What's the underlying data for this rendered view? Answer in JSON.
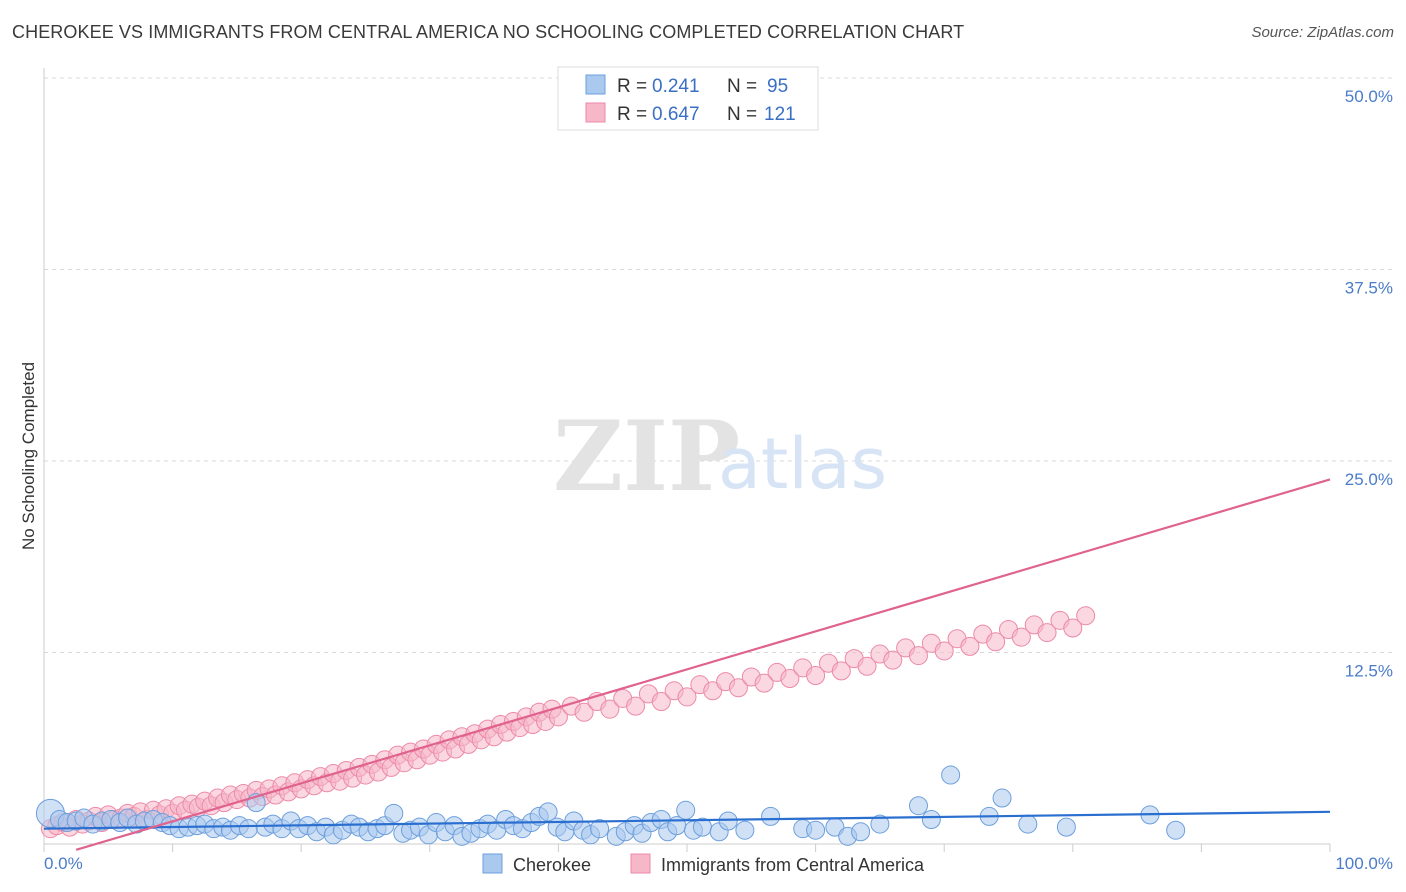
{
  "title": "CHEROKEE VS IMMIGRANTS FROM CENTRAL AMERICA NO SCHOOLING COMPLETED CORRELATION CHART",
  "source": "Source: ZipAtlas.com",
  "watermark": {
    "zip": "ZIP",
    "atlas": "atlas"
  },
  "colors": {
    "blue_fill": "#a9c9ef",
    "blue_stroke": "#6d9fdc",
    "blue_line": "#2a6fd0",
    "pink_fill": "#f6b7c9",
    "pink_stroke": "#ec8aa8",
    "pink_line": "#e0628e",
    "tick_label": "#4a7cc9",
    "grid": "#d9d9d9"
  },
  "legend": [
    {
      "r_label": "R =",
      "r_value": "0.241",
      "n_label": "N =",
      "n_value": "95"
    },
    {
      "r_label": "R =",
      "r_value": "0.647",
      "n_label": "N =",
      "n_value": "121"
    }
  ],
  "chart_data": {
    "type": "scatter",
    "title": "CHEROKEE VS IMMIGRANTS FROM CENTRAL AMERICA NO SCHOOLING COMPLETED CORRELATION CHART",
    "xlabel": "",
    "ylabel": "No Schooling Completed",
    "xlim": [
      0,
      100
    ],
    "ylim": [
      0,
      50
    ],
    "x_ticks": [
      "0.0%",
      "100.0%"
    ],
    "y_ticks": [
      {
        "value": 12.5,
        "label": "12.5%"
      },
      {
        "value": 25.0,
        "label": "25.0%"
      },
      {
        "value": 37.5,
        "label": "37.5%"
      },
      {
        "value": 50.0,
        "label": "50.0%"
      }
    ],
    "grid": true,
    "legend_position": "top-center",
    "series": [
      {
        "name": "Cherokee",
        "color": "#a9c9ef",
        "trend": {
          "x": [
            0,
            100
          ],
          "y": [
            1.0,
            2.1
          ]
        },
        "points": [
          [
            0.5,
            2.0
          ],
          [
            1.2,
            1.6
          ],
          [
            1.8,
            1.4
          ],
          [
            2.5,
            1.5
          ],
          [
            3.1,
            1.7
          ],
          [
            3.8,
            1.3
          ],
          [
            4.5,
            1.5
          ],
          [
            5.2,
            1.6
          ],
          [
            5.9,
            1.4
          ],
          [
            6.5,
            1.7
          ],
          [
            7.2,
            1.3
          ],
          [
            7.8,
            1.5
          ],
          [
            8.5,
            1.6
          ],
          [
            9.2,
            1.4
          ],
          [
            9.8,
            1.2
          ],
          [
            10.5,
            1.0
          ],
          [
            11.2,
            1.1
          ],
          [
            11.9,
            1.2
          ],
          [
            12.5,
            1.3
          ],
          [
            13.2,
            1.0
          ],
          [
            13.9,
            1.1
          ],
          [
            14.5,
            0.9
          ],
          [
            15.2,
            1.2
          ],
          [
            15.9,
            1.0
          ],
          [
            16.5,
            2.7
          ],
          [
            17.2,
            1.1
          ],
          [
            17.8,
            1.3
          ],
          [
            18.5,
            1.0
          ],
          [
            19.2,
            1.5
          ],
          [
            19.8,
            1.0
          ],
          [
            20.5,
            1.2
          ],
          [
            21.2,
            0.8
          ],
          [
            21.9,
            1.1
          ],
          [
            22.5,
            0.6
          ],
          [
            23.2,
            0.9
          ],
          [
            23.9,
            1.3
          ],
          [
            24.5,
            1.1
          ],
          [
            25.2,
            0.8
          ],
          [
            25.9,
            1.0
          ],
          [
            26.5,
            1.2
          ],
          [
            27.2,
            2.0
          ],
          [
            27.9,
            0.7
          ],
          [
            28.5,
            0.9
          ],
          [
            29.2,
            1.1
          ],
          [
            29.9,
            0.6
          ],
          [
            30.5,
            1.4
          ],
          [
            31.2,
            0.8
          ],
          [
            31.9,
            1.2
          ],
          [
            32.5,
            0.5
          ],
          [
            33.2,
            0.7
          ],
          [
            33.9,
            1.0
          ],
          [
            34.5,
            1.3
          ],
          [
            35.2,
            0.9
          ],
          [
            35.9,
            1.6
          ],
          [
            36.5,
            1.2
          ],
          [
            37.2,
            1.0
          ],
          [
            37.9,
            1.4
          ],
          [
            38.5,
            1.8
          ],
          [
            39.2,
            2.1
          ],
          [
            39.9,
            1.1
          ],
          [
            40.5,
            0.8
          ],
          [
            41.2,
            1.5
          ],
          [
            41.9,
            0.9
          ],
          [
            42.5,
            0.6
          ],
          [
            43.2,
            1.0
          ],
          [
            44.5,
            0.5
          ],
          [
            45.2,
            0.8
          ],
          [
            45.9,
            1.2
          ],
          [
            46.5,
            0.7
          ],
          [
            47.2,
            1.4
          ],
          [
            48.0,
            1.6
          ],
          [
            48.5,
            0.8
          ],
          [
            49.2,
            1.2
          ],
          [
            49.9,
            2.2
          ],
          [
            50.5,
            0.9
          ],
          [
            51.2,
            1.1
          ],
          [
            52.5,
            0.8
          ],
          [
            53.2,
            1.5
          ],
          [
            54.5,
            0.9
          ],
          [
            56.5,
            1.8
          ],
          [
            59.0,
            1.0
          ],
          [
            60.0,
            0.9
          ],
          [
            61.5,
            1.1
          ],
          [
            62.5,
            0.5
          ],
          [
            63.5,
            0.8
          ],
          [
            65.0,
            1.3
          ],
          [
            68.0,
            2.5
          ],
          [
            69.0,
            1.6
          ],
          [
            70.5,
            4.5
          ],
          [
            73.5,
            1.8
          ],
          [
            74.5,
            3.0
          ],
          [
            76.5,
            1.3
          ],
          [
            79.5,
            1.1
          ],
          [
            86.0,
            1.9
          ],
          [
            88.0,
            0.9
          ]
        ]
      },
      {
        "name": "Immigrants from Central America",
        "color": "#f6b7c9",
        "trend": {
          "x": [
            0,
            100
          ],
          "y": [
            -1.0,
            23.8
          ]
        },
        "points": [
          [
            0.5,
            1.0
          ],
          [
            1.0,
            1.2
          ],
          [
            1.5,
            1.4
          ],
          [
            2.0,
            1.1
          ],
          [
            2.5,
            1.6
          ],
          [
            3.0,
            1.3
          ],
          [
            3.5,
            1.5
          ],
          [
            4.0,
            1.8
          ],
          [
            4.5,
            1.4
          ],
          [
            5.0,
            1.9
          ],
          [
            5.5,
            1.6
          ],
          [
            6.0,
            1.7
          ],
          [
            6.5,
            2.0
          ],
          [
            7.0,
            1.8
          ],
          [
            7.5,
            2.1
          ],
          [
            8.0,
            1.6
          ],
          [
            8.5,
            2.2
          ],
          [
            9.0,
            1.9
          ],
          [
            9.5,
            2.3
          ],
          [
            10.0,
            2.0
          ],
          [
            10.5,
            2.5
          ],
          [
            11.0,
            2.2
          ],
          [
            11.5,
            2.6
          ],
          [
            12.0,
            2.4
          ],
          [
            12.5,
            2.8
          ],
          [
            13.0,
            2.5
          ],
          [
            13.5,
            3.0
          ],
          [
            14.0,
            2.7
          ],
          [
            14.5,
            3.2
          ],
          [
            15.0,
            2.9
          ],
          [
            15.5,
            3.3
          ],
          [
            16.0,
            3.0
          ],
          [
            16.5,
            3.5
          ],
          [
            17.0,
            3.1
          ],
          [
            17.5,
            3.6
          ],
          [
            18.0,
            3.2
          ],
          [
            18.5,
            3.8
          ],
          [
            19.0,
            3.4
          ],
          [
            19.5,
            4.0
          ],
          [
            20.0,
            3.6
          ],
          [
            20.5,
            4.2
          ],
          [
            21.0,
            3.8
          ],
          [
            21.5,
            4.4
          ],
          [
            22.0,
            4.0
          ],
          [
            22.5,
            4.6
          ],
          [
            23.0,
            4.1
          ],
          [
            23.5,
            4.8
          ],
          [
            24.0,
            4.3
          ],
          [
            24.5,
            5.0
          ],
          [
            25.0,
            4.5
          ],
          [
            25.5,
            5.2
          ],
          [
            26.0,
            4.7
          ],
          [
            26.5,
            5.5
          ],
          [
            27.0,
            5.0
          ],
          [
            27.5,
            5.8
          ],
          [
            28.0,
            5.3
          ],
          [
            28.5,
            6.0
          ],
          [
            29.0,
            5.5
          ],
          [
            29.5,
            6.2
          ],
          [
            30.0,
            5.8
          ],
          [
            30.5,
            6.5
          ],
          [
            31.0,
            6.0
          ],
          [
            31.5,
            6.8
          ],
          [
            32.0,
            6.2
          ],
          [
            32.5,
            7.0
          ],
          [
            33.0,
            6.5
          ],
          [
            33.5,
            7.2
          ],
          [
            34.0,
            6.8
          ],
          [
            34.5,
            7.5
          ],
          [
            35.0,
            7.0
          ],
          [
            35.5,
            7.8
          ],
          [
            36.0,
            7.3
          ],
          [
            36.5,
            8.0
          ],
          [
            37.0,
            7.6
          ],
          [
            37.5,
            8.3
          ],
          [
            38.0,
            7.8
          ],
          [
            38.5,
            8.6
          ],
          [
            39.0,
            8.0
          ],
          [
            39.5,
            8.8
          ],
          [
            40.0,
            8.3
          ],
          [
            41.0,
            9.0
          ],
          [
            42.0,
            8.6
          ],
          [
            43.0,
            9.3
          ],
          [
            44.0,
            8.8
          ],
          [
            45.0,
            9.5
          ],
          [
            46.0,
            9.0
          ],
          [
            47.0,
            9.8
          ],
          [
            48.0,
            9.3
          ],
          [
            49.0,
            10.0
          ],
          [
            50.0,
            9.6
          ],
          [
            51.0,
            10.4
          ],
          [
            52.0,
            10.0
          ],
          [
            53.0,
            10.6
          ],
          [
            54.0,
            10.2
          ],
          [
            55.0,
            10.9
          ],
          [
            56.0,
            10.5
          ],
          [
            57.0,
            11.2
          ],
          [
            58.0,
            10.8
          ],
          [
            59.0,
            11.5
          ],
          [
            60.0,
            11.0
          ],
          [
            61.0,
            11.8
          ],
          [
            62.0,
            11.3
          ],
          [
            63.0,
            12.1
          ],
          [
            64.0,
            11.6
          ],
          [
            65.0,
            12.4
          ],
          [
            66.0,
            12.0
          ],
          [
            67.0,
            12.8
          ],
          [
            68.0,
            12.3
          ],
          [
            69.0,
            13.1
          ],
          [
            70.0,
            12.6
          ],
          [
            71.0,
            13.4
          ],
          [
            72.0,
            12.9
          ],
          [
            73.0,
            13.7
          ],
          [
            74.0,
            13.2
          ],
          [
            75.0,
            14.0
          ],
          [
            76.0,
            13.5
          ],
          [
            77.0,
            14.3
          ],
          [
            78.0,
            13.8
          ],
          [
            79.0,
            14.6
          ],
          [
            80.0,
            14.1
          ],
          [
            81.0,
            14.9
          ]
        ]
      }
    ]
  },
  "bottom_legend": [
    {
      "label": "Cherokee"
    },
    {
      "label": "Immigrants from Central America"
    }
  ]
}
